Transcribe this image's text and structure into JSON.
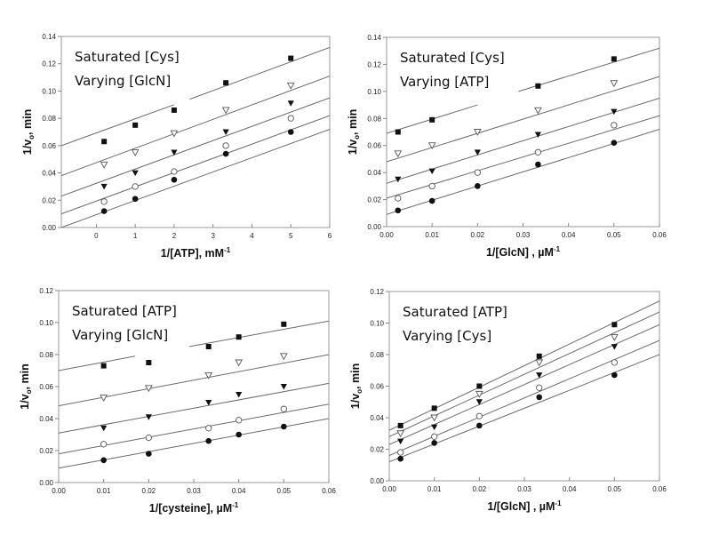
{
  "figure": {
    "description": "Double-reciprocal (Lineweaver-Burk) plots, four panels"
  },
  "chart_data": [
    {
      "type": "scatter",
      "panel": "top-left",
      "annotations": [
        "Saturated [Cys]",
        "Varying [GlcN]"
      ],
      "xlabel": "1/[ATP], mM",
      "xlabel_sup": "-1",
      "ylabel": "1/v",
      "ylabel_sub": "o",
      "ylabel_suffix": ", min",
      "xlim": [
        -0.9,
        6
      ],
      "ylim": [
        0,
        0.14
      ],
      "xticks": [
        0,
        1,
        2,
        3,
        4,
        5,
        6
      ],
      "xtick_labels": [
        "0",
        "1",
        "2",
        "3",
        "4",
        "5",
        "6"
      ],
      "yticks": [
        0,
        0.02,
        0.04,
        0.06,
        0.08,
        0.1,
        0.12,
        0.14
      ],
      "ytick_labels": [
        "0.00",
        "0.02",
        "0.04",
        "0.06",
        "0.08",
        "0.10",
        "0.12",
        "0.14"
      ],
      "grid": false,
      "x": [
        0.2,
        1,
        2,
        3.33,
        5
      ],
      "series": [
        {
          "name": "series-1",
          "marker": "filled-square",
          "values": [
            0.063,
            0.075,
            0.086,
            0.106,
            0.124
          ],
          "fit": [
            [
              -0.9,
              0.06
            ],
            [
              2.0,
              0.09
            ],
            [
              2.4,
              0.094
            ],
            [
              6,
              0.132
            ]
          ],
          "fit_gap": [
            2.0,
            2.4
          ]
        },
        {
          "name": "series-2",
          "marker": "open-triangle-down",
          "values": [
            0.046,
            0.055,
            0.069,
            0.086,
            0.104
          ],
          "fit": [
            [
              -0.9,
              0.038
            ],
            [
              6,
              0.111
            ]
          ]
        },
        {
          "name": "series-3",
          "marker": "filled-triangle-down",
          "values": [
            0.03,
            0.04,
            0.055,
            0.07,
            0.091
          ],
          "fit": [
            [
              -0.9,
              0.023
            ],
            [
              6,
              0.095
            ]
          ]
        },
        {
          "name": "series-4",
          "marker": "open-circle",
          "values": [
            0.019,
            0.03,
            0.041,
            0.06,
            0.08
          ],
          "fit": [
            [
              -0.9,
              0.01
            ],
            [
              6,
              0.082
            ]
          ]
        },
        {
          "name": "series-5",
          "marker": "filled-circle",
          "values": [
            0.012,
            0.021,
            0.035,
            0.054,
            0.07
          ],
          "fit": [
            [
              -0.9,
              0.0
            ],
            [
              6,
              0.072
            ]
          ]
        }
      ]
    },
    {
      "type": "scatter",
      "panel": "top-right",
      "annotations": [
        "Saturated [Cys]",
        "Varying [ATP]"
      ],
      "xlabel": "1/[GlcN]       , µM",
      "xlabel_sup": "-1",
      "ylabel": "1/v",
      "ylabel_sub": "o",
      "ylabel_suffix": ", min",
      "xlim": [
        0,
        0.06
      ],
      "ylim": [
        0,
        0.14
      ],
      "xticks": [
        0,
        0.01,
        0.02,
        0.03,
        0.04,
        0.05,
        0.06
      ],
      "xtick_labels": [
        "0.00",
        "0.01",
        "0.02",
        "0.03",
        "0.04",
        "0.05",
        "0.06"
      ],
      "yticks": [
        0,
        0.02,
        0.04,
        0.06,
        0.08,
        0.1,
        0.12,
        0.14
      ],
      "ytick_labels": [
        "0.00",
        "0.02",
        "0.04",
        "0.06",
        "0.08",
        "0.10",
        "0.12",
        "0.14"
      ],
      "grid": false,
      "x": [
        0.0025,
        0.01,
        0.02,
        0.0333,
        0.05
      ],
      "series": [
        {
          "name": "series-1",
          "marker": "filled-square",
          "values": [
            0.07,
            0.079,
            null,
            0.104,
            0.124
          ],
          "fit": [
            [
              0,
              0.069
            ],
            [
              0.02,
              0.09
            ],
            [
              0.029,
              0.1
            ],
            [
              0.06,
              0.132
            ]
          ],
          "fit_gap": [
            0.02,
            0.029
          ]
        },
        {
          "name": "series-2",
          "marker": "open-triangle-down",
          "values": [
            0.054,
            0.06,
            0.07,
            0.086,
            0.106
          ],
          "fit": [
            [
              0,
              0.048
            ],
            [
              0.06,
              0.111
            ]
          ]
        },
        {
          "name": "series-3",
          "marker": "filled-triangle-down",
          "values": [
            0.035,
            0.041,
            0.055,
            0.068,
            0.085
          ],
          "fit": [
            [
              0,
              0.032
            ],
            [
              0.06,
              0.095
            ]
          ]
        },
        {
          "name": "series-4",
          "marker": "open-circle",
          "values": [
            0.021,
            0.03,
            0.04,
            0.055,
            0.075
          ],
          "fit": [
            [
              0,
              0.021
            ],
            [
              0.06,
              0.082
            ]
          ]
        },
        {
          "name": "series-5",
          "marker": "filled-circle",
          "values": [
            0.012,
            0.019,
            0.03,
            0.046,
            0.062
          ],
          "fit": [
            [
              0,
              0.009
            ],
            [
              0.06,
              0.072
            ]
          ]
        }
      ]
    },
    {
      "type": "scatter",
      "panel": "bottom-left",
      "annotations": [
        "Saturated [ATP]",
        "Varying [GlcN]"
      ],
      "xlabel": "1/[cysteine], µM",
      "xlabel_sup": "-1",
      "ylabel": "1/v",
      "ylabel_sub": "o",
      "ylabel_suffix": ", min",
      "xlim": [
        0,
        0.06
      ],
      "ylim": [
        0,
        0.12
      ],
      "xticks": [
        0,
        0.01,
        0.02,
        0.03,
        0.04,
        0.05,
        0.06
      ],
      "xtick_labels": [
        "0.00",
        "0.01",
        "0.02",
        "0.03",
        "0.04",
        "0.05",
        "0.06"
      ],
      "yticks": [
        0,
        0.02,
        0.04,
        0.06,
        0.08,
        0.1,
        0.12
      ],
      "ytick_labels": [
        "0.00",
        "0.02",
        "0.04",
        "0.06",
        "0.08",
        "0.10",
        "0.12"
      ],
      "grid": false,
      "x": [
        0.01,
        0.02,
        0.0333,
        0.04,
        0.05
      ],
      "series": [
        {
          "name": "series-1",
          "marker": "filled-square",
          "values": [
            0.073,
            0.075,
            0.085,
            0.091,
            0.099
          ],
          "fit": [
            [
              0,
              0.07
            ],
            [
              0.017,
              0.079
            ],
            [
              0.029,
              0.085
            ],
            [
              0.06,
              0.101
            ]
          ],
          "fit_gap": [
            0.017,
            0.029
          ]
        },
        {
          "name": "series-2",
          "marker": "open-triangle-down",
          "values": [
            0.053,
            0.059,
            0.067,
            0.075,
            0.079
          ],
          "fit": [
            [
              0,
              0.048
            ],
            [
              0.06,
              0.08
            ]
          ]
        },
        {
          "name": "series-3",
          "marker": "filled-triangle-down",
          "values": [
            0.034,
            0.041,
            0.05,
            0.055,
            0.06
          ],
          "fit": [
            [
              0,
              0.031
            ],
            [
              0.06,
              0.062
            ]
          ]
        },
        {
          "name": "series-4",
          "marker": "open-circle",
          "values": [
            0.024,
            0.028,
            0.034,
            0.039,
            0.046
          ],
          "fit": [
            [
              0,
              0.018
            ],
            [
              0.06,
              0.049
            ]
          ]
        },
        {
          "name": "series-5",
          "marker": "filled-circle",
          "values": [
            0.014,
            0.018,
            0.026,
            0.03,
            0.035
          ],
          "fit": [
            [
              0,
              0.009
            ],
            [
              0.06,
              0.04
            ]
          ]
        }
      ]
    },
    {
      "type": "scatter",
      "panel": "bottom-right",
      "annotations": [
        "Saturated [ATP]",
        "Varying [Cys]"
      ],
      "xlabel": "1/[GlcN]       , µM",
      "xlabel_sup": "-1",
      "ylabel": "1/v",
      "ylabel_sub": "o",
      "ylabel_suffix": ", min",
      "xlim": [
        0,
        0.06
      ],
      "ylim": [
        0,
        0.12
      ],
      "xticks": [
        0,
        0.01,
        0.02,
        0.03,
        0.04,
        0.05,
        0.06
      ],
      "xtick_labels": [
        "0.00",
        "0.01",
        "0.02",
        "0.03",
        "0.04",
        "0.05",
        "0.06"
      ],
      "yticks": [
        0,
        0.02,
        0.04,
        0.06,
        0.08,
        0.1,
        0.12
      ],
      "ytick_labels": [
        "0.00",
        "0.02",
        "0.04",
        "0.06",
        "0.08",
        "0.10",
        "0.12"
      ],
      "grid": false,
      "x": [
        0.0025,
        0.01,
        0.02,
        0.0333,
        0.05
      ],
      "series": [
        {
          "name": "series-1",
          "marker": "filled-square",
          "values": [
            0.035,
            0.046,
            0.06,
            0.079,
            0.099
          ],
          "fit": [
            [
              0,
              0.032
            ],
            [
              0.06,
              0.114
            ]
          ]
        },
        {
          "name": "series-2",
          "marker": "open-triangle-down",
          "values": [
            0.03,
            0.04,
            0.055,
            0.075,
            0.091
          ],
          "fit": [
            [
              0,
              0.028
            ],
            [
              0.06,
              0.107
            ]
          ]
        },
        {
          "name": "series-3",
          "marker": "filled-triangle-down",
          "values": [
            0.025,
            0.034,
            0.05,
            0.067,
            0.085
          ],
          "fit": [
            [
              0,
              0.023
            ],
            [
              0.06,
              0.099
            ]
          ]
        },
        {
          "name": "series-4",
          "marker": "open-circle",
          "values": [
            0.018,
            0.028,
            0.041,
            0.059,
            0.075
          ],
          "fit": [
            [
              0,
              0.016
            ],
            [
              0.06,
              0.089
            ]
          ]
        },
        {
          "name": "series-5",
          "marker": "filled-circle",
          "values": [
            0.014,
            0.024,
            0.035,
            0.053,
            0.067
          ],
          "fit": [
            [
              0,
              0.012
            ],
            [
              0.06,
              0.08
            ]
          ]
        }
      ]
    }
  ]
}
